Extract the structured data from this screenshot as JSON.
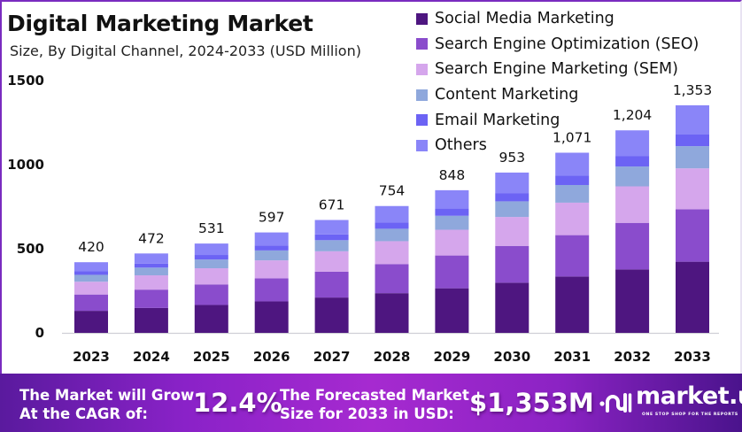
{
  "title": "Digital Marketing Market",
  "subtitle": "Size, By Digital Channel, 2024-2033 (USD Million)",
  "chart_data": {
    "type": "bar",
    "stacked": true,
    "title": "Digital Marketing Market",
    "subtitle": "Size, By Digital Channel, 2024-2033 (USD Million)",
    "xlabel": "",
    "ylabel": "",
    "ylim": [
      0,
      1500
    ],
    "yticks": [
      0,
      500,
      1000,
      1500
    ],
    "ytick_labels": [
      "0",
      "500",
      "1000",
      "1500"
    ],
    "grid": false,
    "legend_position": "top-right",
    "categories": [
      "2023",
      "2024",
      "2025",
      "2026",
      "2027",
      "2028",
      "2029",
      "2030",
      "2031",
      "2032",
      "2033"
    ],
    "totals": [
      420,
      472,
      531,
      597,
      671,
      754,
      848,
      953,
      1071,
      1204,
      1353
    ],
    "total_labels": [
      "420",
      "472",
      "531",
      "597",
      "671",
      "754",
      "848",
      "953",
      "1,071",
      "1,204",
      "1,353"
    ],
    "series": [
      {
        "name": "Social Media Marketing",
        "color": "#4e1680",
        "values": [
          131,
          148,
          166,
          187,
          210,
          236,
          265,
          298,
          335,
          377,
          423
        ]
      },
      {
        "name": "Search Engine Optimization (SEO)",
        "color": "#8a4ccc",
        "values": [
          97,
          109,
          122,
          137,
          154,
          173,
          195,
          219,
          246,
          277,
          312
        ]
      },
      {
        "name": "Search Engine Marketing (SEM)",
        "color": "#d5a6ec",
        "values": [
          76,
          85,
          96,
          107,
          121,
          136,
          153,
          172,
          193,
          217,
          243
        ]
      },
      {
        "name": "Content Marketing",
        "color": "#8fa8dc",
        "values": [
          41,
          46,
          52,
          59,
          66,
          74,
          83,
          93,
          105,
          118,
          132
        ]
      },
      {
        "name": "Email Marketing",
        "color": "#6c63f4",
        "values": [
          21,
          24,
          27,
          30,
          34,
          38,
          43,
          49,
          55,
          61,
          69
        ]
      },
      {
        "name": "Others",
        "color": "#8a85f8",
        "values": [
          54,
          60,
          68,
          77,
          86,
          97,
          109,
          122,
          137,
          154,
          174
        ]
      }
    ]
  },
  "footer": {
    "cagr_label_line1": "The Market will Grow",
    "cagr_label_line2": "At the CAGR of:",
    "cagr_value": "12.4%",
    "forecast_label_line1": "The Forecasted Market",
    "forecast_label_line2": "Size for 2033 in USD:",
    "forecast_value": "$1,353M",
    "brand_name": "market.us",
    "brand_tagline": "ONE STOP SHOP FOR THE REPORTS",
    "brand_icon": "market-us-logo-icon"
  }
}
